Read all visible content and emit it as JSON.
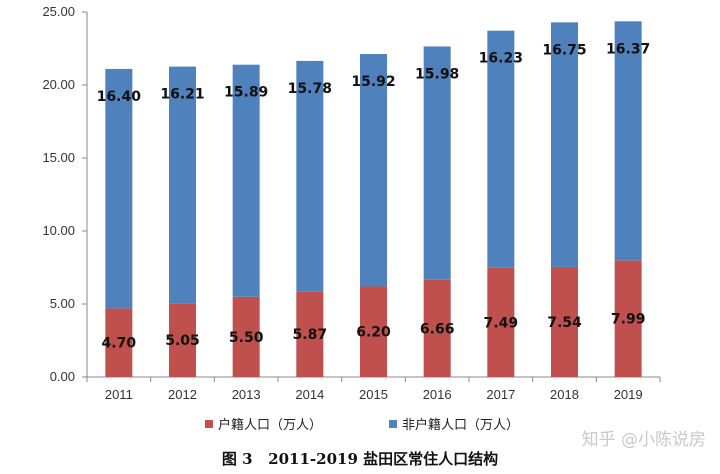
{
  "chart_data": {
    "type": "bar",
    "stacked": true,
    "categories": [
      "2011",
      "2012",
      "2013",
      "2014",
      "2015",
      "2016",
      "2017",
      "2018",
      "2019"
    ],
    "series": [
      {
        "name": "户籍人口（万人）",
        "color": "#c0504d",
        "values": [
          4.7,
          5.05,
          5.5,
          5.87,
          6.2,
          6.66,
          7.49,
          7.54,
          7.99
        ],
        "labels": [
          "4.70",
          "5.05",
          "5.50",
          "5.87",
          "6.20",
          "6.66",
          "7.49",
          "7.54",
          "7.99"
        ]
      },
      {
        "name": "非户籍人口（万人）",
        "color": "#4f81bd",
        "values": [
          16.4,
          16.21,
          15.89,
          15.78,
          15.92,
          15.98,
          16.23,
          16.75,
          16.37
        ],
        "labels": [
          "16.40",
          "16.21",
          "15.89",
          "15.78",
          "15.92",
          "15.98",
          "16.23",
          "16.75",
          "16.37"
        ]
      }
    ],
    "ylim": [
      0,
      25
    ],
    "yticks": [
      "0.00",
      "5.00",
      "10.00",
      "15.00",
      "20.00",
      "25.00"
    ],
    "legend_position": "bottom",
    "grid": false
  },
  "caption": "图 3   2011-2019 盐田区常住人口结构",
  "watermark": "知乎 @小陈说房"
}
